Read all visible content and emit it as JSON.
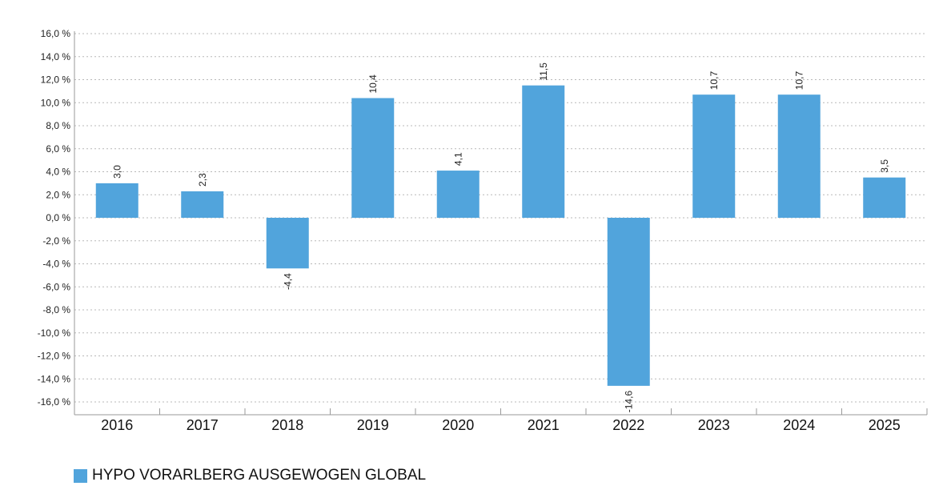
{
  "chart_data": {
    "type": "bar",
    "categories": [
      "2016",
      "2017",
      "2018",
      "2019",
      "2020",
      "2021",
      "2022",
      "2023",
      "2024",
      "2025"
    ],
    "series": [
      {
        "name": "HYPO VORARLBERG AUSGEWOGEN GLOBAL",
        "values": [
          3.0,
          2.3,
          -4.4,
          10.4,
          4.1,
          11.5,
          -14.6,
          10.7,
          10.7,
          3.5
        ],
        "value_labels": [
          "3,0",
          "2,3",
          "-4,4",
          "10,4",
          "4,1",
          "11,5",
          "-14,6",
          "10,7",
          "10,7",
          "3,5"
        ],
        "color": "#51a4dc"
      }
    ],
    "y_ticks": [
      16,
      14,
      12,
      10,
      8,
      6,
      4,
      2,
      0,
      -2,
      -4,
      -6,
      -8,
      -10,
      -12,
      -14,
      -16
    ],
    "y_tick_labels": [
      "16,0 %",
      "14,0 %",
      "12,0 %",
      "10,0 %",
      "8,0 %",
      "6,0 %",
      "4,0 %",
      "2,0 %",
      "0,0 %",
      "-2,0 %",
      "-4,0 %",
      "-6,0 %",
      "-8,0 %",
      "-10,0 %",
      "-12,0 %",
      "-14,0 %",
      "-16,0 %"
    ],
    "ylim": [
      -16,
      16
    ],
    "grid": true,
    "grid_style": "dotted",
    "legend_position": "bottom-left",
    "title": "",
    "xlabel": "",
    "ylabel": ""
  }
}
